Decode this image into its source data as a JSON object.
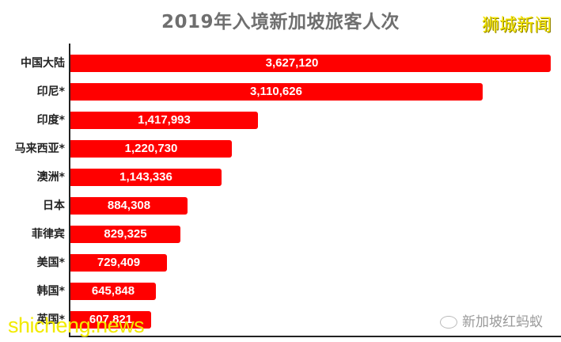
{
  "header": {
    "title": "2019年入境新加坡旅客人次",
    "brand": "狮城新闻"
  },
  "watermarks": {
    "site": "shicheng.news",
    "account": "新加坡红蚂蚁"
  },
  "colors": {
    "bar": "#ff0000",
    "title": "#6f6f6f",
    "brand": "#f5e600"
  },
  "chart_data": {
    "type": "bar",
    "orientation": "horizontal",
    "title": "2019年入境新加坡旅客人次",
    "xlabel": "",
    "ylabel": "",
    "categories": [
      "中国大陆",
      "印尼*",
      "印度*",
      "马来西亚*",
      "澳洲*",
      "日本",
      "菲律宾",
      "美国*",
      "韩国*",
      "英国*"
    ],
    "values": [
      3627120,
      3110626,
      1417993,
      1220730,
      1143336,
      884308,
      829325,
      729409,
      645848,
      607821
    ],
    "labels": [
      "3,627,120",
      "3,110,626",
      "1,417,993",
      "1,220,730",
      "1,143,336",
      "884,308",
      "829,325",
      "729,409",
      "645,848",
      "607,821"
    ],
    "grid": false,
    "legend": null
  }
}
